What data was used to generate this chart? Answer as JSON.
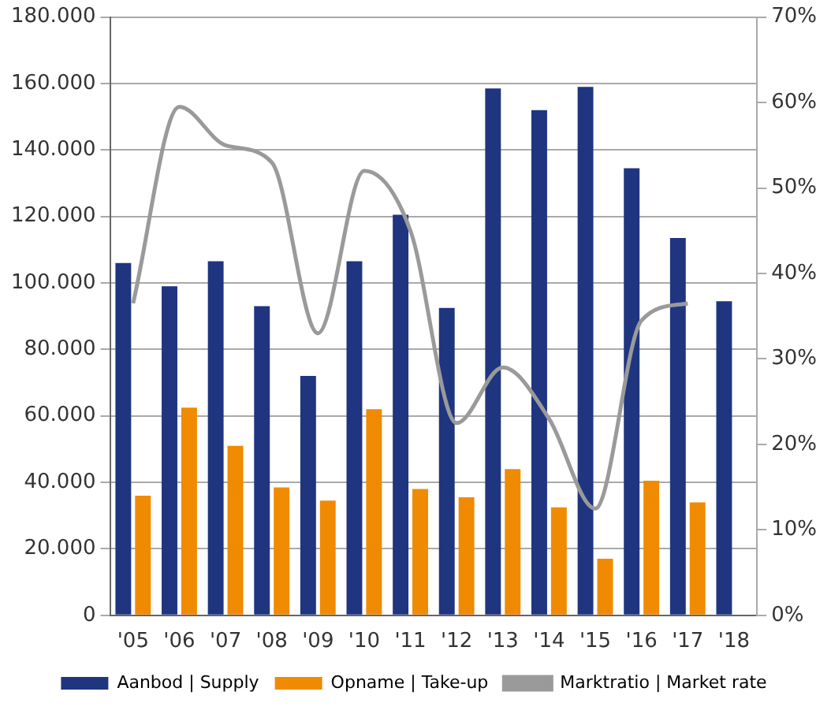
{
  "chart_data": {
    "type": "bar",
    "categories": [
      "'05",
      "'06",
      "'07",
      "'08",
      "'09",
      "'10",
      "'11",
      "'12",
      "'13",
      "'14",
      "'15",
      "'16",
      "'17",
      "'18"
    ],
    "series": [
      {
        "name": "Aanbod | Supply",
        "color": "#1f3580",
        "values": [
          106000,
          99000,
          106500,
          93000,
          72000,
          106500,
          120500,
          92500,
          158500,
          152000,
          159000,
          134500,
          113500,
          94500
        ]
      },
      {
        "name": "Opname | Take-up",
        "color": "#f08a00",
        "values": [
          36000,
          62500,
          51000,
          38500,
          34500,
          62000,
          38000,
          35500,
          44000,
          32500,
          17000,
          40500,
          34000,
          null
        ]
      },
      {
        "name": "Marktratio | Market rate",
        "type": "line",
        "axis": "y2",
        "color": "#9a9a9a",
        "values": [
          36.5,
          59.5,
          55,
          53,
          33,
          52,
          45,
          22.5,
          29,
          23,
          12.5,
          34.5,
          36.5,
          null
        ]
      }
    ],
    "ylim": [
      0,
      180000
    ],
    "yticks": [
      {
        "value": 0,
        "label": "0"
      },
      {
        "value": 20000,
        "label": "20.000"
      },
      {
        "value": 40000,
        "label": "40.000"
      },
      {
        "value": 60000,
        "label": "60.000"
      },
      {
        "value": 80000,
        "label": "80.000"
      },
      {
        "value": 100000,
        "label": "100.000"
      },
      {
        "value": 120000,
        "label": "120.000"
      },
      {
        "value": 140000,
        "label": "140.000"
      },
      {
        "value": 160000,
        "label": "160.000"
      },
      {
        "value": 180000,
        "label": "180.000"
      }
    ],
    "y2lim": [
      0,
      70
    ],
    "y2ticks": [
      {
        "value": 0,
        "label": "0%"
      },
      {
        "value": 10,
        "label": "10%"
      },
      {
        "value": 20,
        "label": "20%"
      },
      {
        "value": 30,
        "label": "30%"
      },
      {
        "value": 40,
        "label": "40%"
      },
      {
        "value": 50,
        "label": "50%"
      },
      {
        "value": 60,
        "label": "60%"
      },
      {
        "value": 70,
        "label": "70%"
      }
    ],
    "grid": "y",
    "legend": "bottom",
    "marker": "none"
  }
}
